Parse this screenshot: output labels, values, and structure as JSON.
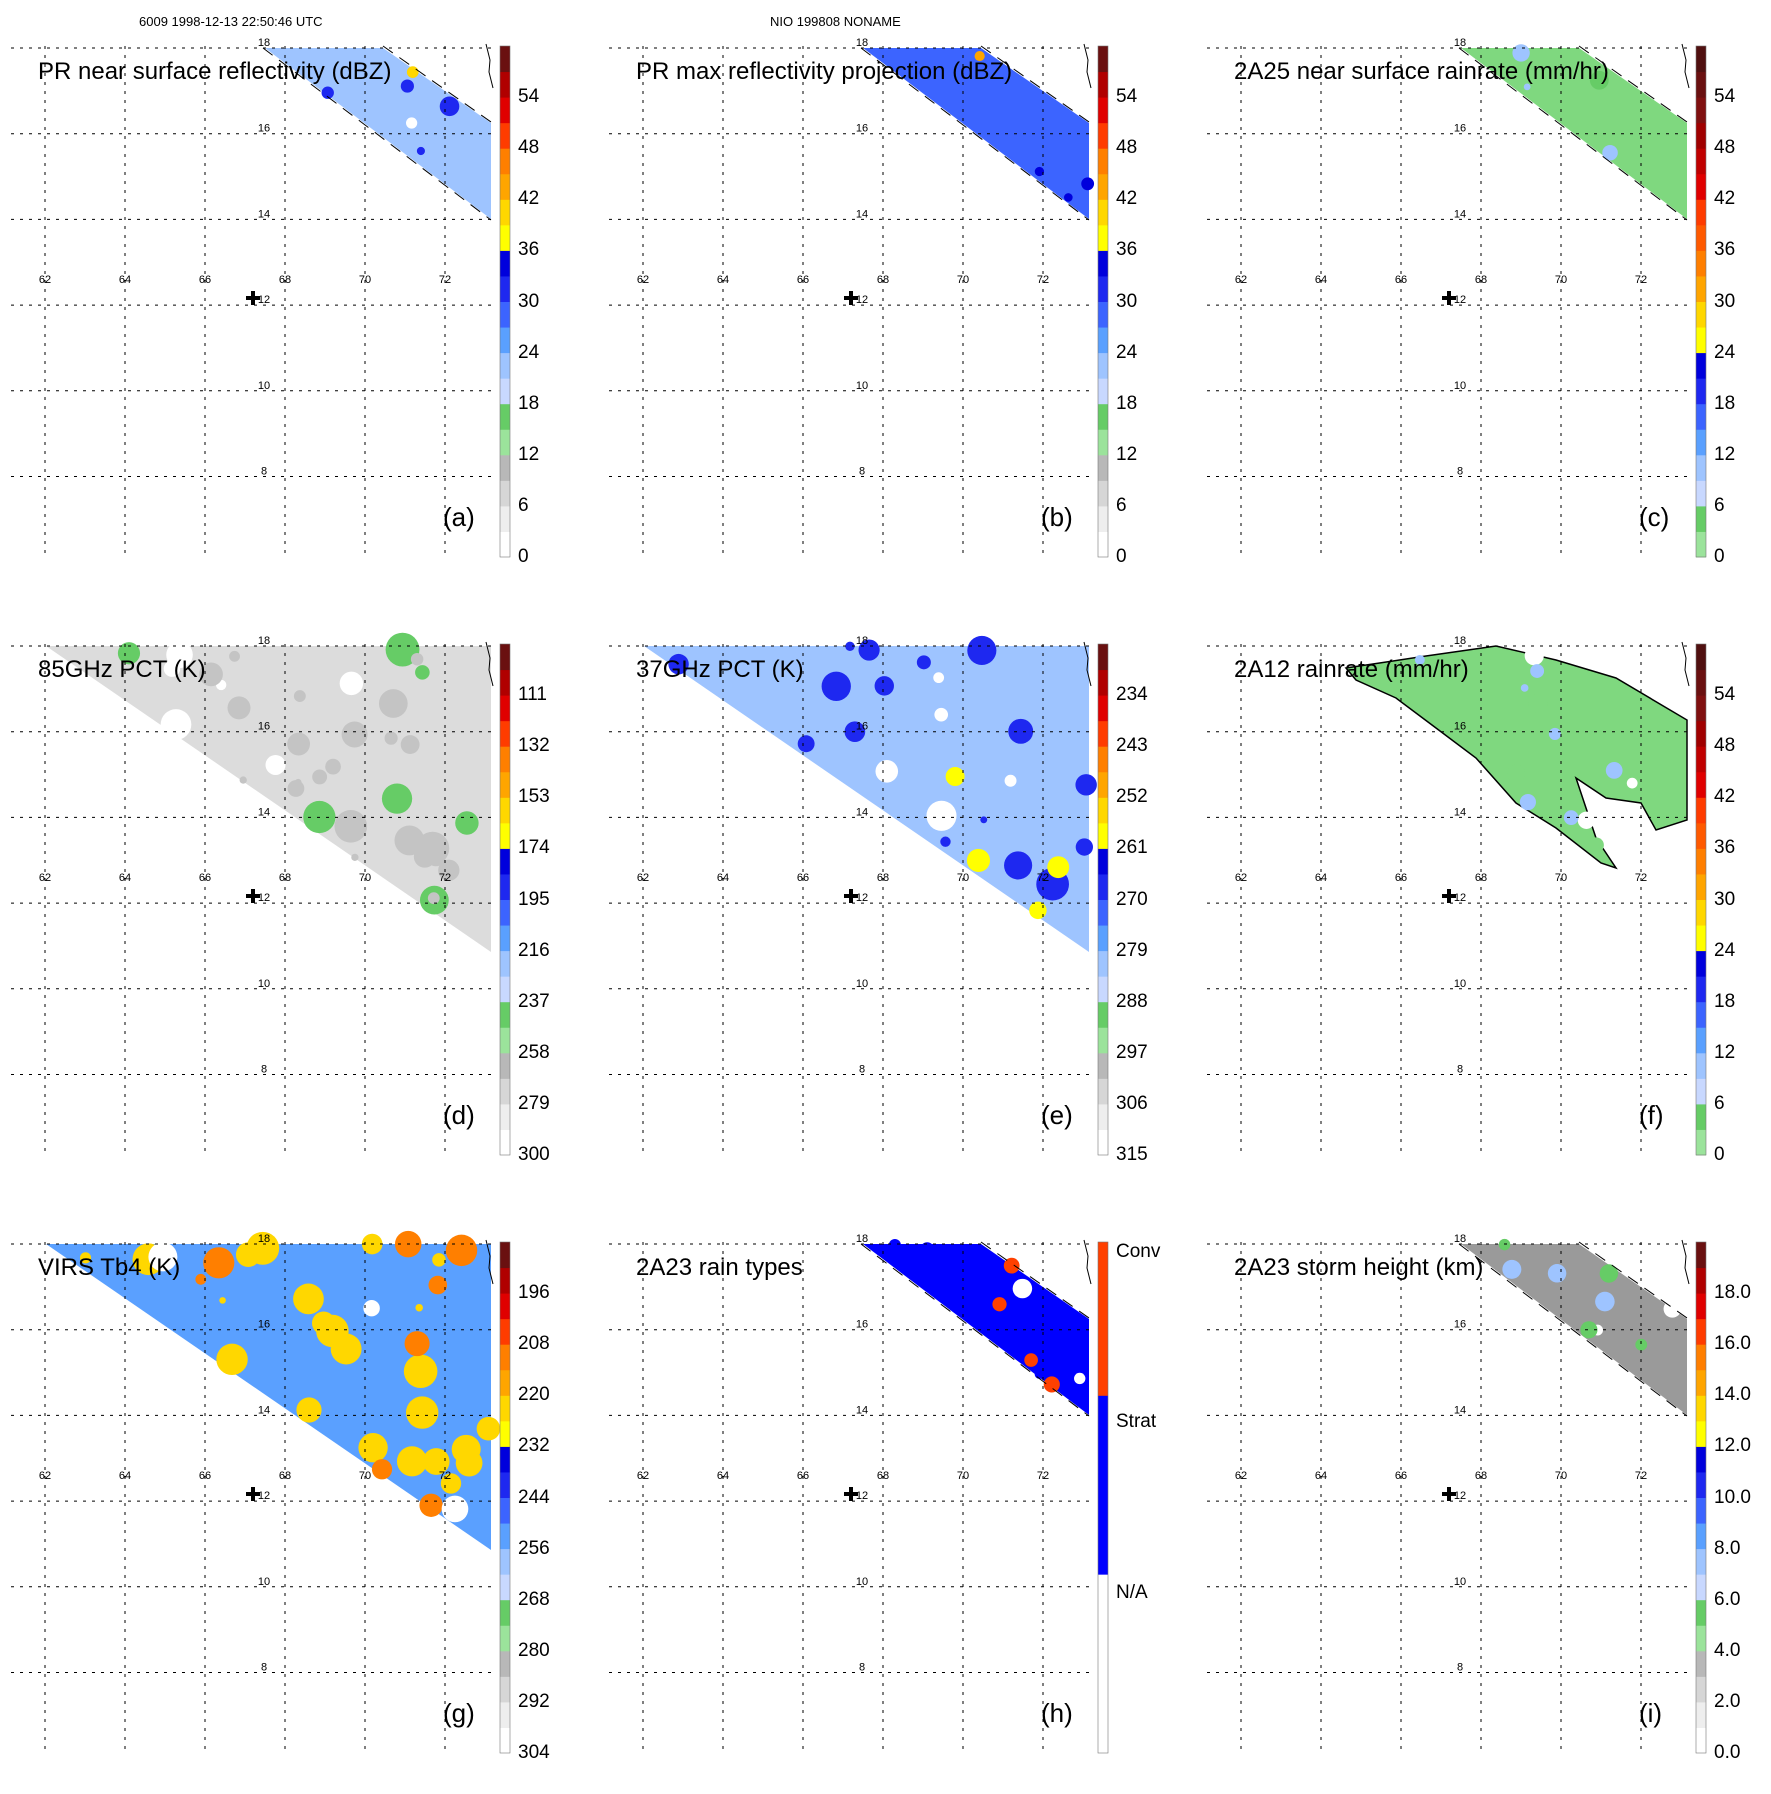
{
  "headers": {
    "left": "6009 1998-12-13 22:50:46 UTC",
    "center": "NIO 199808 NONAME"
  },
  "grid": {
    "lon_labels": [
      "62",
      "64",
      "66",
      "68",
      "70",
      "72"
    ],
    "lat_labels": [
      "18",
      "16",
      "14",
      "12",
      "10",
      "8"
    ]
  },
  "palettes": {
    "standard": [
      "#ffffff",
      "#eeeeee",
      "#d6d6d6",
      "#b8b8b8",
      "#9be39b",
      "#66cc66",
      "#c8d8ff",
      "#9ec4ff",
      "#5aa0ff",
      "#3c64ff",
      "#1e28f0",
      "#0000dc",
      "#ffff00",
      "#ffd700",
      "#ffa500",
      "#ff7f00",
      "#ff3c00",
      "#e00000",
      "#b00000",
      "#6a1010"
    ],
    "rain": [
      "#9be39b",
      "#66cc66",
      "#c8d8ff",
      "#9ec4ff",
      "#5aa0ff",
      "#3c64ff",
      "#1e28f0",
      "#0000dc",
      "#ffff00",
      "#ffd700",
      "#ffa500",
      "#ff7f00",
      "#ff5a00",
      "#ff3c00",
      "#e00000",
      "#c00000",
      "#a00000",
      "#801010",
      "#6a1010",
      "#501010"
    ],
    "types": [
      "#ffffff",
      "#ffffff",
      "#ffffff",
      "#ffffff",
      "#ffffff",
      "#ffffff",
      "#ffffff",
      "#0000ff",
      "#0000ff",
      "#0000ff",
      "#0000ff",
      "#0000ff",
      "#0000ff",
      "#0000ff",
      "#ff4000",
      "#ff4000",
      "#ff4000",
      "#ff4000",
      "#ff4000",
      "#ff4000"
    ]
  },
  "panels": [
    {
      "title": "PR near surface reflectivity (dBZ)",
      "letter": "(a)",
      "palette": "standard",
      "ticks": [
        "0",
        "6",
        "12",
        "18",
        "24",
        "30",
        "36",
        "42",
        "48",
        "54"
      ],
      "shape": "swath",
      "fill": "#9ec4ff",
      "accent": "#1e28f0",
      "hot": "#ffd700"
    },
    {
      "title": "PR max reflectivity projection (dBZ)",
      "letter": "(b)",
      "palette": "standard",
      "ticks": [
        "0",
        "6",
        "12",
        "18",
        "24",
        "30",
        "36",
        "42",
        "48",
        "54"
      ],
      "shape": "swath",
      "fill": "#3c64ff",
      "accent": "#0000dc",
      "hot": "#ffa500"
    },
    {
      "title": "2A25 near surface rainrate (mm/hr)",
      "letter": "(c)",
      "palette": "rain",
      "ticks": [
        "0",
        "6",
        "12",
        "18",
        "24",
        "30",
        "36",
        "42",
        "48",
        "54"
      ],
      "shape": "swath",
      "fill": "#7fd87f",
      "accent": "#9ec4ff",
      "hot": "#66cc66"
    },
    {
      "title": "85GHz PCT (K)",
      "letter": "(d)",
      "palette": "standard",
      "ticks": [
        "300",
        "279",
        "258",
        "237",
        "216",
        "195",
        "174",
        "153",
        "132",
        "111"
      ],
      "shape": "tri",
      "fill": "#dcdcdc",
      "accent": "#c4c4c4",
      "hot": "#66cc66"
    },
    {
      "title": "37GHz PCT (K)",
      "letter": "(e)",
      "palette": "standard",
      "ticks": [
        "315",
        "306",
        "297",
        "288",
        "279",
        "270",
        "261",
        "252",
        "243",
        "234"
      ],
      "shape": "tri",
      "fill": "#9ec4ff",
      "accent": "#1e28f0",
      "hot": "#ffff00"
    },
    {
      "title": "2A12 rainrate (mm/hr)",
      "letter": "(f)",
      "palette": "rain",
      "ticks": [
        "0",
        "6",
        "12",
        "18",
        "24",
        "30",
        "36",
        "42",
        "48",
        "54"
      ],
      "shape": "blob",
      "fill": "#7fd87f",
      "accent": "#9ec4ff",
      "hot": "#7fd87f"
    },
    {
      "title": "VIRS Tb4 (K)",
      "letter": "(g)",
      "palette": "standard",
      "ticks": [
        "304",
        "292",
        "280",
        "268",
        "256",
        "244",
        "232",
        "220",
        "208",
        "196"
      ],
      "shape": "tri",
      "fill": "#5aa0ff",
      "accent": "#ffd700",
      "hot": "#ff7f00"
    },
    {
      "title": "2A23 rain types",
      "letter": "(h)",
      "palette": "types",
      "ticks": [],
      "cat_labels": [
        "N/A",
        "Strat",
        "Conv"
      ],
      "shape": "swath",
      "fill": "#0000ff",
      "accent": "#0000ff",
      "hot": "#ff4000"
    },
    {
      "title": "2A23 storm height (km)",
      "letter": "(i)",
      "palette": "standard",
      "ticks": [
        "0.0",
        "2.0",
        "4.0",
        "6.0",
        "8.0",
        "10.0",
        "12.0",
        "14.0",
        "16.0",
        "18.0"
      ],
      "shape": "swath",
      "fill": "#9a9a9a",
      "accent": "#66cc66",
      "hot": "#9ec4ff"
    }
  ]
}
